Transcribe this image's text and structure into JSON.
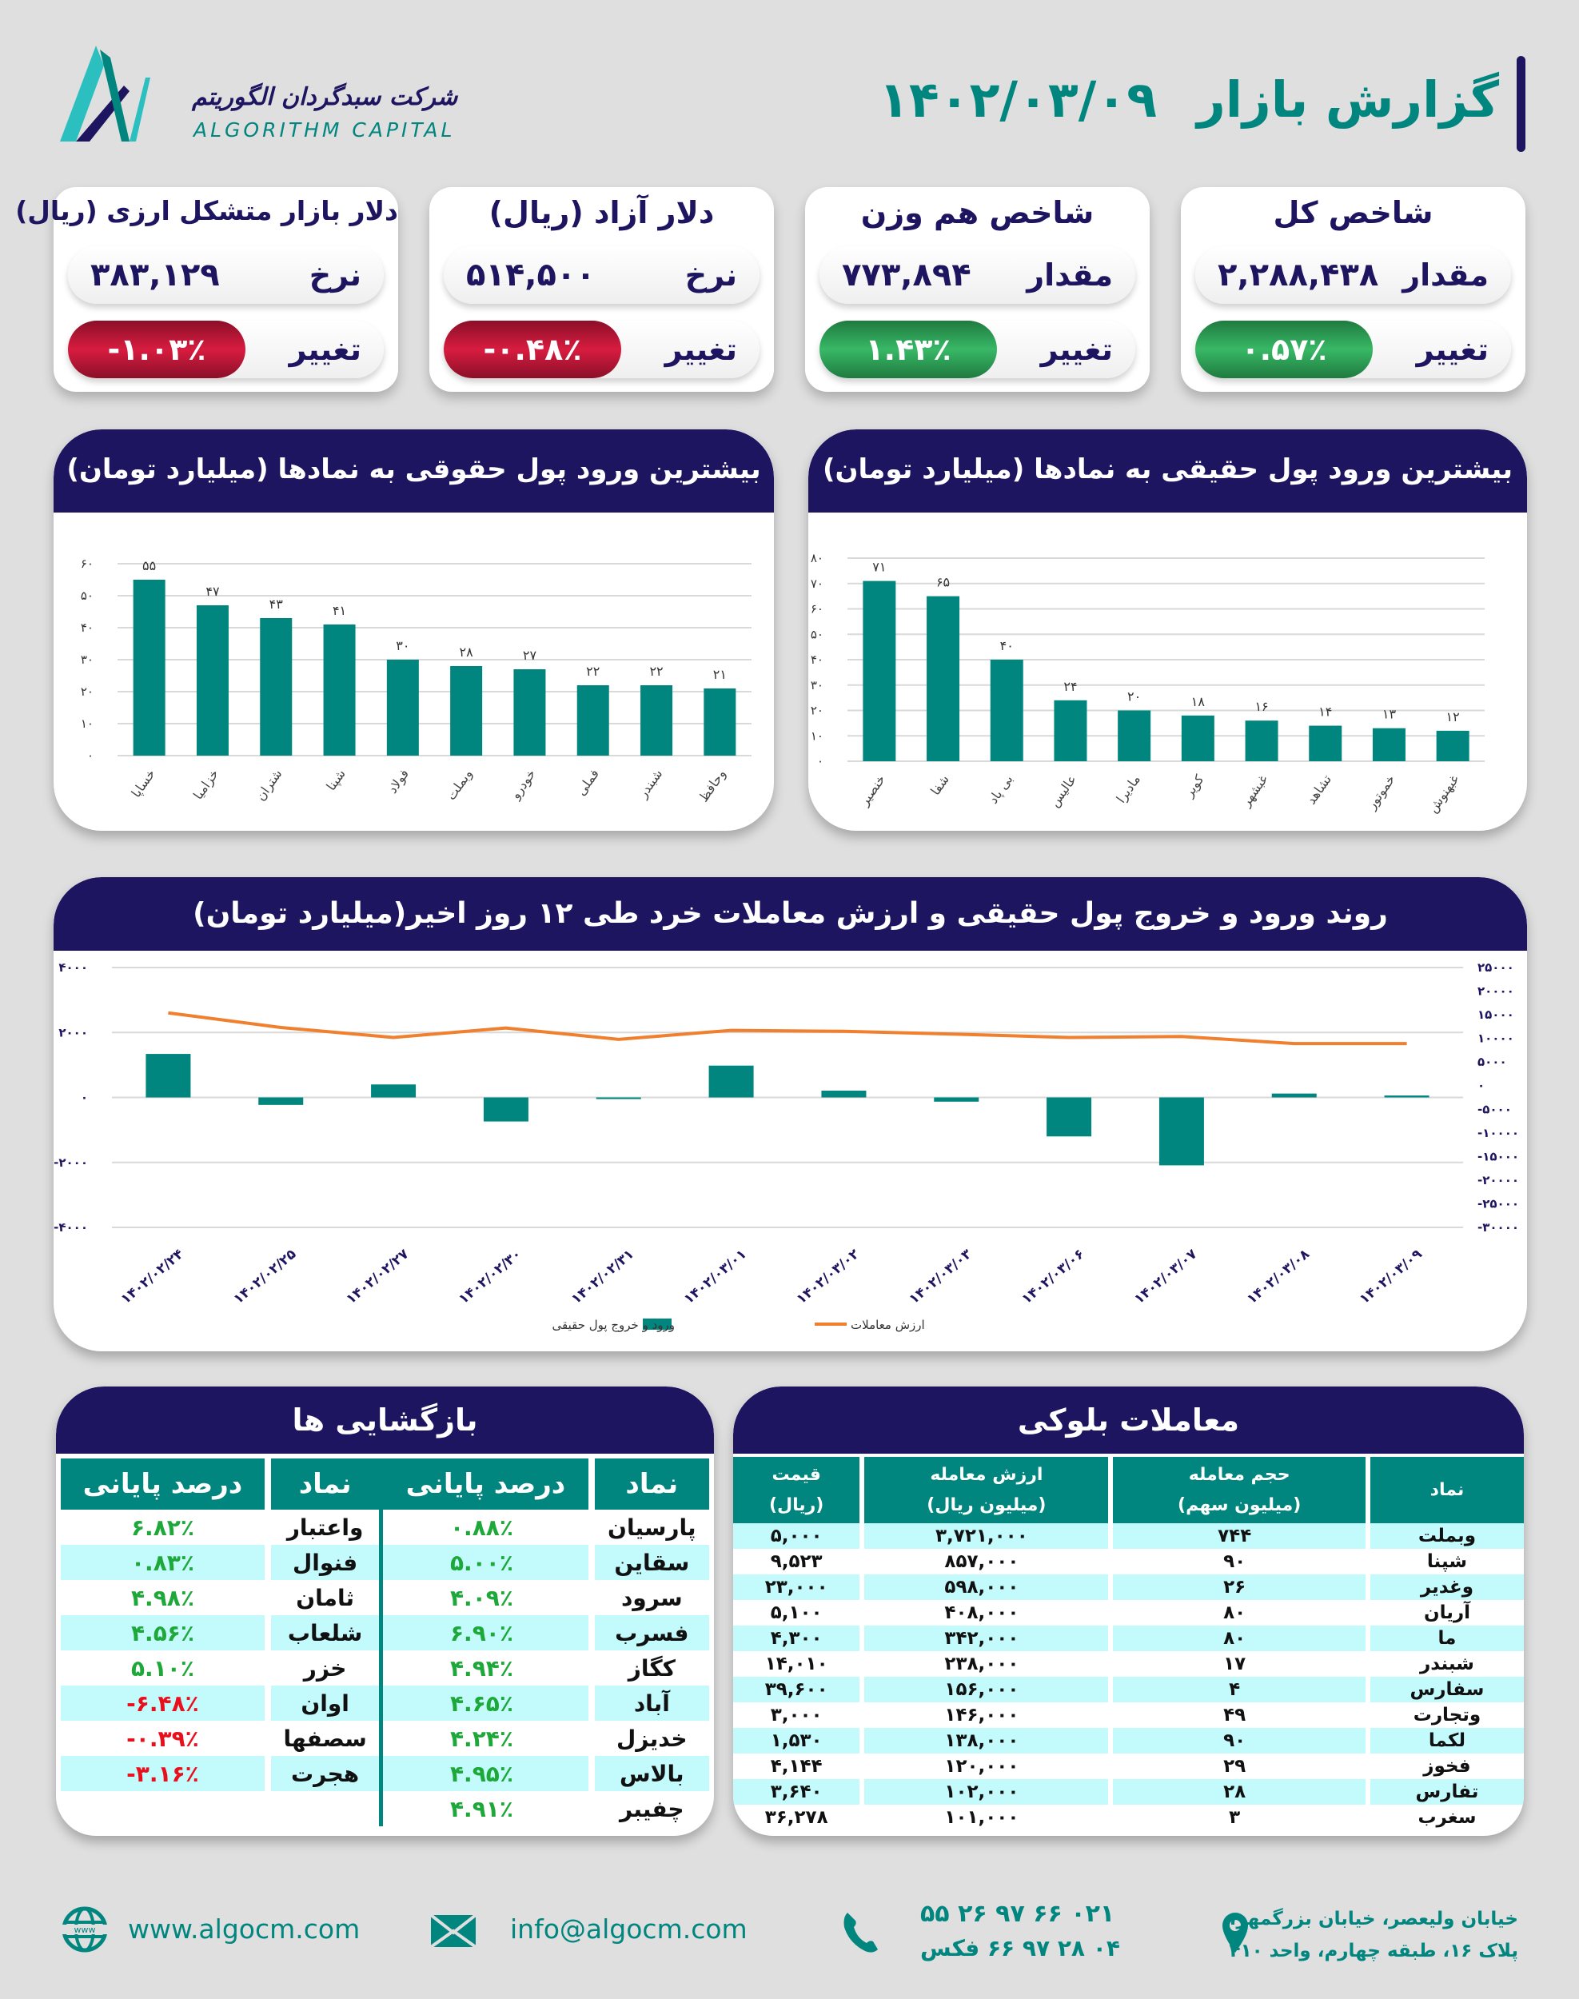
{
  "header": {
    "title": "گزارش بازار",
    "date": "۱۴۰۲/۰۳/۰۹",
    "company_fa": "شرکت سبدگردان الگوریتم",
    "company_en": "ALGORITHM CAPITAL"
  },
  "cards": [
    {
      "title": "شاخص کل",
      "value_label": "مقدار",
      "value": "۲,۲۸۸,۴۳۸",
      "change_label": "تغییر",
      "change": "۰.۵۷٪",
      "direction": "up"
    },
    {
      "title": "شاخص هم وزن",
      "value_label": "مقدار",
      "value": "۷۷۳,۸۹۴",
      "change_label": "تغییر",
      "change": "۱.۴۳٪",
      "direction": "up"
    },
    {
      "title": "دلار آزاد (ریال)",
      "value_label": "نرخ",
      "value": "۵۱۴,۵۰۰",
      "change_label": "تغییر",
      "change": "-۰.۴۸٪",
      "direction": "down"
    },
    {
      "title": "دلار بازار متشکل ارزی (ریال)",
      "value_label": "نرخ",
      "value": "۳۸۳,۱۲۹",
      "change_label": "تغییر",
      "change": "-۱.۰۳٪",
      "direction": "down"
    }
  ],
  "colors": {
    "navy": "#1e1560",
    "teal": "#00867f",
    "orange": "#f07f2e",
    "up": "#1ea83a",
    "down": "#e8101c",
    "row": "#c3fbfd"
  },
  "panels": {
    "legal_title": "بیشترین ورود پول حقوقی به نمادها (میلیارد تومان)",
    "real_title": "بیشترین ورود پول حقیقی به نمادها (میلیارد تومان)",
    "trend_title": "روند ورود و خروج پول حقیقی و ارزش معاملات خرد طی ۱۲ روز اخیر(میلیارد تومان)",
    "openings_title": "بازگشایی ها",
    "block_title": "معاملات بلوکی"
  },
  "chart_data": [
    {
      "type": "bar",
      "title": "بیشترین ورود پول حقوقی به نمادها (میلیارد تومان)",
      "categories": [
        "خساپا",
        "خزامیا",
        "شتران",
        "شپنا",
        "فولاد",
        "وبملت",
        "خودرو",
        "فملی",
        "شبندر",
        "وحافظ"
      ],
      "values": [
        55,
        47,
        43,
        41,
        30,
        28,
        27,
        22,
        22,
        21
      ],
      "ylim": [
        0,
        60
      ],
      "yticks": [
        0,
        10,
        20,
        30,
        40,
        50,
        60
      ],
      "ytick_labels": [
        "۰",
        "۱۰",
        "۲۰",
        "۳۰",
        "۴۰",
        "۵۰",
        "۶۰"
      ],
      "grid": true
    },
    {
      "type": "bar",
      "title": "بیشترین ورود پول حقیقی به نمادها (میلیارد تومان)",
      "categories": [
        "خنصیر",
        "شفا",
        "بی پاد",
        "عالیس",
        "مادیرا",
        "کویر",
        "غبشهر",
        "تشاهد",
        "خموتور",
        "غبهنوش"
      ],
      "values": [
        71,
        65,
        40,
        24,
        20,
        18,
        16,
        14,
        13,
        12
      ],
      "ylim": [
        0,
        80
      ],
      "yticks": [
        0,
        10,
        20,
        30,
        40,
        50,
        60,
        70,
        80
      ],
      "ytick_labels": [
        "۰",
        "۱۰",
        "۲۰",
        "۳۰",
        "۴۰",
        "۵۰",
        "۶۰",
        "۷۰",
        "۸۰"
      ],
      "grid": true
    },
    {
      "type": "bar+line",
      "title": "روند ورود و خروج پول حقیقی و ارزش معاملات خرد طی ۱۲ روز اخیر(میلیارد تومان)",
      "categories": [
        "۱۴۰۲/۰۲/۲۴",
        "۱۴۰۲/۰۲/۲۵",
        "۱۴۰۲/۰۲/۲۷",
        "۱۴۰۲/۰۲/۳۰",
        "۱۴۰۲/۰۲/۳۱",
        "۱۴۰۲/۰۳/۰۱",
        "۱۴۰۲/۰۳/۰۲",
        "۱۴۰۲/۰۳/۰۳",
        "۱۴۰۲/۰۳/۰۶",
        "۱۴۰۲/۰۳/۰۷",
        "۱۴۰۲/۰۳/۰۸",
        "۱۴۰۲/۰۳/۰۹"
      ],
      "series": [
        {
          "name": "ورود و خروج پول حقیقی",
          "type": "bar",
          "axis": "left",
          "values": [
            1340,
            -230,
            400,
            -740,
            -40,
            980,
            210,
            -130,
            -1200,
            -2090,
            120,
            60
          ]
        },
        {
          "name": "ارزش معاملات",
          "type": "line",
          "axis": "right",
          "values": [
            15400,
            12300,
            10200,
            12200,
            9800,
            11700,
            11500,
            10900,
            10200,
            10400,
            8900,
            8900
          ]
        }
      ],
      "left_ylim": [
        -4000,
        4000
      ],
      "left_ticks": [
        4000,
        2000,
        0,
        -2000,
        -4000
      ],
      "left_tick_labels": [
        "۴۰۰۰",
        "۲۰۰۰",
        "۰",
        "-۲۰۰۰",
        "-۴۰۰۰"
      ],
      "right_ylim": [
        -30000,
        25000
      ],
      "right_ticks": [
        25000,
        20000,
        15000,
        10000,
        5000,
        0,
        -5000,
        -10000,
        -15000,
        -20000,
        -25000,
        -30000
      ],
      "right_tick_labels": [
        "۲۵۰۰۰",
        "۲۰۰۰۰",
        "۱۵۰۰۰",
        "۱۰۰۰۰",
        "۵۰۰۰",
        "۰",
        "-۵۰۰۰",
        "-۱۰۰۰۰",
        "-۱۵۰۰۰",
        "-۲۰۰۰۰",
        "-۲۵۰۰۰",
        "-۳۰۰۰۰"
      ],
      "legend": "bottom-center",
      "grid": true
    }
  ],
  "openings": {
    "headers": [
      "نماد",
      "درصد پایانی",
      "نماد",
      "درصد پایانی"
    ],
    "right": [
      {
        "symbol": "پارسیان",
        "pct": "۰.۸۸٪",
        "dir": "up"
      },
      {
        "symbol": "سقاین",
        "pct": "۵.۰۰٪",
        "dir": "up"
      },
      {
        "symbol": "سرود",
        "pct": "۴.۰۹٪",
        "dir": "up"
      },
      {
        "symbol": "فسرب",
        "pct": "۶.۹۰٪",
        "dir": "up"
      },
      {
        "symbol": "کگاز",
        "pct": "۴.۹۴٪",
        "dir": "up"
      },
      {
        "symbol": "آباد",
        "pct": "۴.۶۵٪",
        "dir": "up"
      },
      {
        "symbol": "خدیزل",
        "pct": "۴.۲۴٪",
        "dir": "up"
      },
      {
        "symbol": "بالاس",
        "pct": "۴.۹۵٪",
        "dir": "up"
      },
      {
        "symbol": "چفیبر",
        "pct": "۴.۹۱٪",
        "dir": "up"
      }
    ],
    "left": [
      {
        "symbol": "واعتبار",
        "pct": "۶.۸۲٪",
        "dir": "up"
      },
      {
        "symbol": "فنوال",
        "pct": "۰.۸۳٪",
        "dir": "up"
      },
      {
        "symbol": "ثامان",
        "pct": "۴.۹۸٪",
        "dir": "up"
      },
      {
        "symbol": "شلعاب",
        "pct": "۴.۵۶٪",
        "dir": "up"
      },
      {
        "symbol": "خزر",
        "pct": "۵.۱۰٪",
        "dir": "up"
      },
      {
        "symbol": "اوان",
        "pct": "-۶.۴۸٪",
        "dir": "down"
      },
      {
        "symbol": "سصفها",
        "pct": "-۰.۳۹٪",
        "dir": "down"
      },
      {
        "symbol": "هجرت",
        "pct": "-۳.۱۶٪",
        "dir": "down"
      }
    ]
  },
  "block_trades": {
    "headers": [
      {
        "l1": "نماد",
        "l2": ""
      },
      {
        "l1": "حجم معامله",
        "l2": "(میلیون سهم)"
      },
      {
        "l1": "ارزش معامله",
        "l2": "(میلیون ریال)"
      },
      {
        "l1": "قیمت",
        "l2": "(ریال)"
      }
    ],
    "rows": [
      [
        "وبملت",
        "۷۴۴",
        "۳,۷۲۱,۰۰۰",
        "۵,۰۰۰"
      ],
      [
        "شپنا",
        "۹۰",
        "۸۵۷,۰۰۰",
        "۹,۵۲۳"
      ],
      [
        "وغدیر",
        "۲۶",
        "۵۹۸,۰۰۰",
        "۲۳,۰۰۰"
      ],
      [
        "آریان",
        "۸۰",
        "۴۰۸,۰۰۰",
        "۵,۱۰۰"
      ],
      [
        "ما",
        "۸۰",
        "۳۴۲,۰۰۰",
        "۴,۳۰۰"
      ],
      [
        "شبندر",
        "۱۷",
        "۲۳۸,۰۰۰",
        "۱۴,۰۱۰"
      ],
      [
        "سفارس",
        "۴",
        "۱۵۶,۰۰۰",
        "۳۹,۶۰۰"
      ],
      [
        "وتجارت",
        "۴۹",
        "۱۴۶,۰۰۰",
        "۳,۰۰۰"
      ],
      [
        "لکما",
        "۹۰",
        "۱۳۸,۰۰۰",
        "۱,۵۳۰"
      ],
      [
        "فخوز",
        "۲۹",
        "۱۲۰,۰۰۰",
        "۴,۱۴۴"
      ],
      [
        "تفارس",
        "۲۸",
        "۱۰۲,۰۰۰",
        "۳,۶۴۰"
      ],
      [
        "سغرب",
        "۳",
        "۱۰۱,۰۰۰",
        "۳۶,۲۷۸"
      ]
    ]
  },
  "footer": {
    "website": "www.algocm.com",
    "email": "info@algocm.com",
    "phone": "۰۲۱ ۶۶ ۹۷ ۲۶ ۵۵",
    "fax": "۰۴ ۲۸ ۹۷ ۶۶ فکس",
    "address_line1": "خیابان ولیعصر، خیابان بزرگمهر،",
    "address_line2": "پلاک ۱۶، طبقه چهارم، واحد ۴۱۰"
  }
}
